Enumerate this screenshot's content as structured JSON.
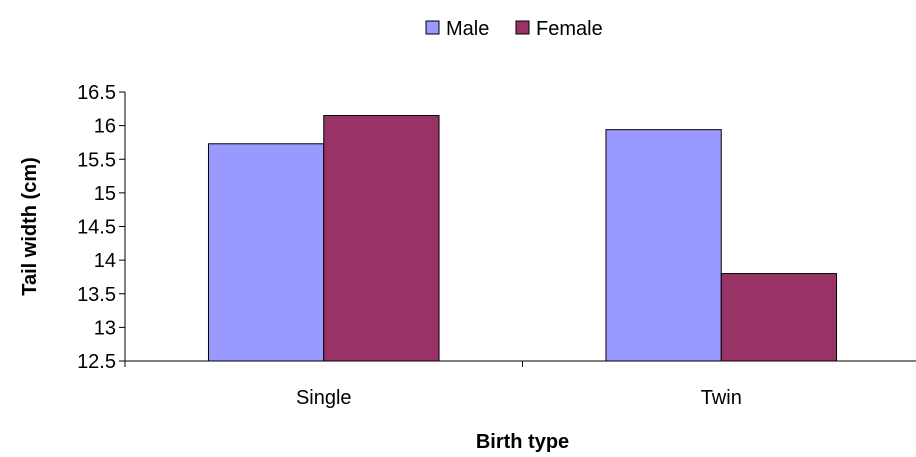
{
  "chart_data": {
    "type": "bar",
    "categories": [
      "Single",
      "Twin"
    ],
    "series": [
      {
        "name": "Male",
        "values": [
          15.73,
          15.94
        ],
        "color": "#9999ff"
      },
      {
        "name": "Female",
        "values": [
          16.15,
          13.8
        ],
        "color": "#993366"
      }
    ],
    "xlabel": "Birth type",
    "ylabel": "Tail width (cm)",
    "ylim": [
      12.5,
      16.5
    ],
    "yticks": [
      "12.5",
      "13",
      "13.5",
      "14",
      "14.5",
      "15",
      "15.5",
      "16",
      "16.5"
    ],
    "grid": false,
    "legend_position": "top"
  }
}
